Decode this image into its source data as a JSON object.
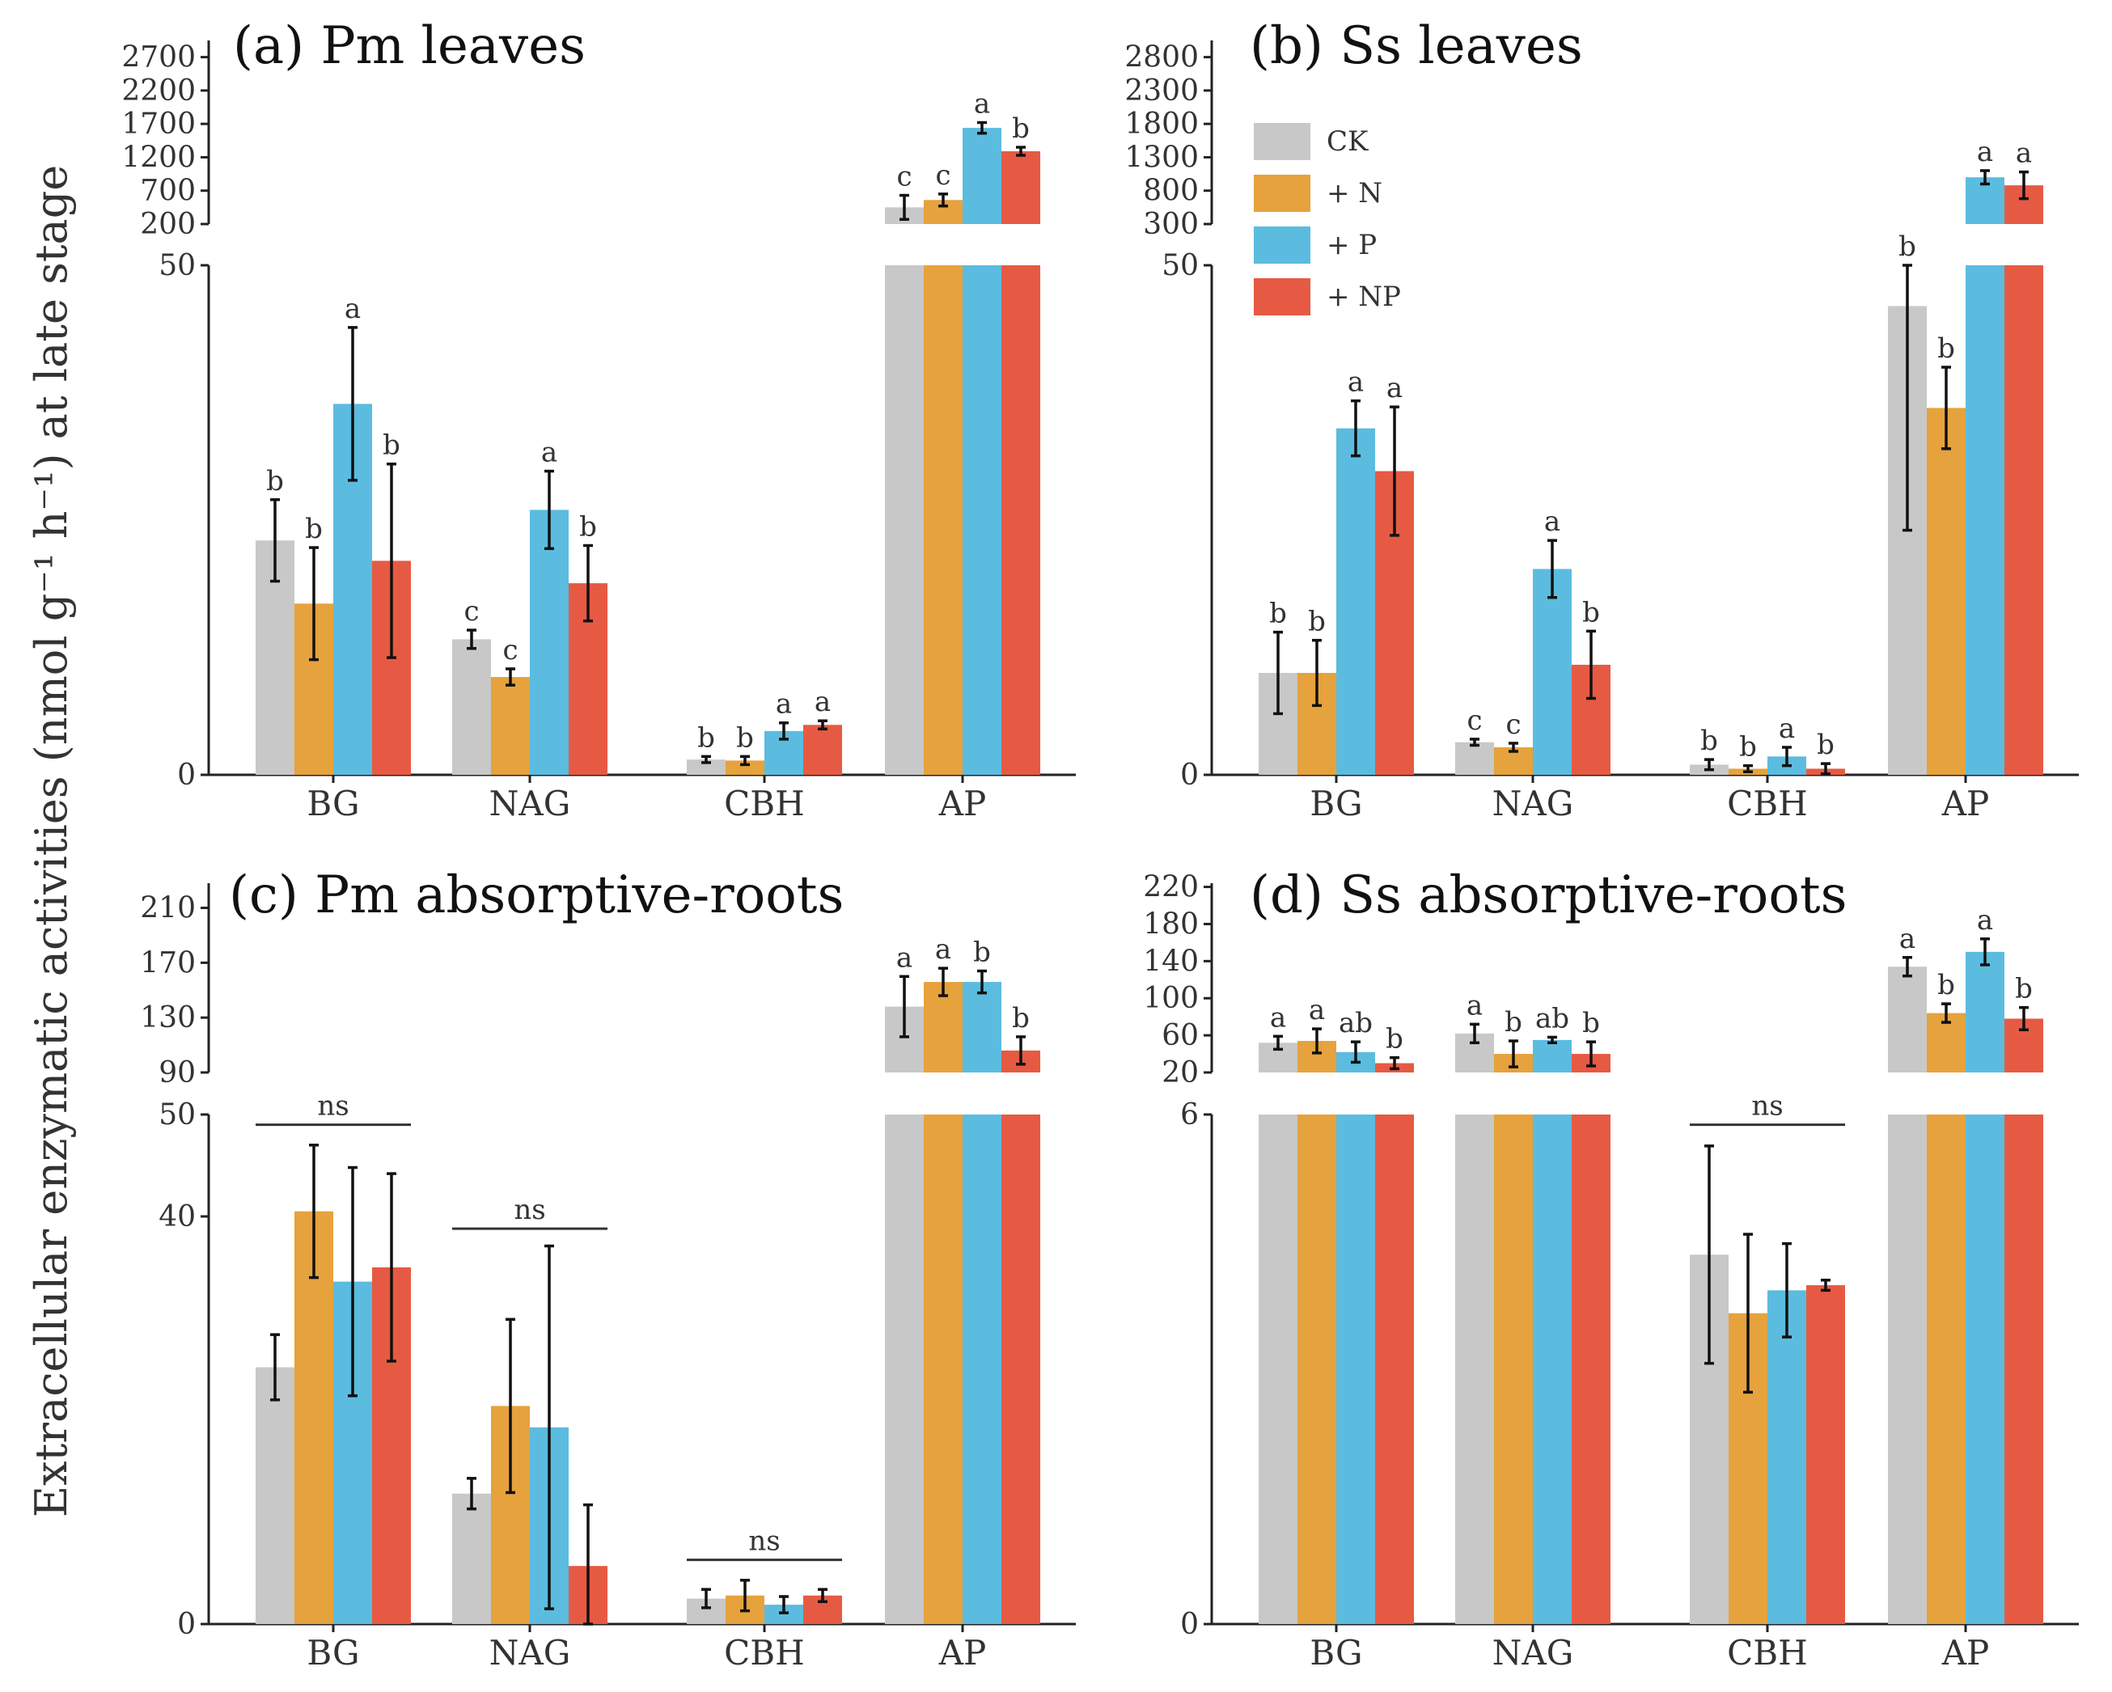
{
  "figure": {
    "y_axis_label": "Extracellular enzymatic activities (nmol g⁻¹ h⁻¹) at late stage",
    "categories": [
      "BG",
      "NAG",
      "CBH",
      "AP"
    ]
  },
  "legend": [
    {
      "label": "CK",
      "color": "#c8c8c8"
    },
    {
      "label": "+ N",
      "color": "#e6a23c"
    },
    {
      "label": "+ P",
      "color": "#5bbcdf"
    },
    {
      "label": "+ NP",
      "color": "#e65a43"
    }
  ],
  "chart_data": [
    {
      "type": "bar",
      "panel": "a",
      "title": "(a) Pm leaves",
      "categories": [
        "BG",
        "NAG",
        "CBH",
        "AP"
      ],
      "lower_axis": {
        "ylim": [
          0,
          50
        ],
        "ticks": [
          "0",
          "50"
        ]
      },
      "upper_axis": {
        "ylim": [
          200,
          2950
        ],
        "ticks": [
          "200",
          "700",
          "1200",
          "1700",
          "2200",
          "2700"
        ]
      },
      "series": [
        {
          "name": "CK",
          "values": [
            23.0,
            13.3,
            1.5,
            450
          ],
          "errors": [
            4.0,
            0.9,
            0.3,
            180
          ],
          "letters": [
            "b",
            "c",
            "b",
            "c"
          ]
        },
        {
          "name": "+ N",
          "values": [
            16.8,
            9.6,
            1.4,
            560
          ],
          "errors": [
            5.5,
            0.8,
            0.4,
            90
          ],
          "letters": [
            "b",
            "c",
            "b",
            "c"
          ]
        },
        {
          "name": "+ P",
          "values": [
            36.4,
            26.0,
            4.3,
            1640
          ],
          "errors": [
            7.5,
            3.8,
            0.8,
            80
          ],
          "letters": [
            "a",
            "a",
            "a",
            "a"
          ]
        },
        {
          "name": "+ NP",
          "values": [
            21.0,
            18.8,
            4.9,
            1290
          ],
          "errors": [
            9.5,
            3.7,
            0.4,
            60
          ],
          "letters": [
            "b",
            "b",
            "a",
            "b"
          ]
        }
      ],
      "ns": []
    },
    {
      "type": "bar",
      "panel": "b",
      "title": "(b) Ss leaves",
      "categories": [
        "BG",
        "NAG",
        "CBH",
        "AP"
      ],
      "lower_axis": {
        "ylim": [
          0,
          50
        ],
        "ticks": [
          "0",
          "50"
        ]
      },
      "upper_axis": {
        "ylim": [
          300,
          3050
        ],
        "ticks": [
          "300",
          "800",
          "1300",
          "1800",
          "2300",
          "2800"
        ]
      },
      "series": [
        {
          "name": "CK",
          "values": [
            10.0,
            3.2,
            1.0,
            46.0
          ],
          "errors": [
            4.0,
            0.3,
            0.5,
            22
          ],
          "letters": [
            "b",
            "c",
            "b",
            "b"
          ]
        },
        {
          "name": "+ N",
          "values": [
            10.0,
            2.7,
            0.6,
            36.0
          ],
          "errors": [
            3.2,
            0.4,
            0.3,
            4.0
          ],
          "letters": [
            "b",
            "c",
            "b",
            "b"
          ]
        },
        {
          "name": "+ P",
          "values": [
            34.0,
            20.2,
            1.8,
            1000
          ],
          "errors": [
            2.7,
            2.8,
            0.9,
            100
          ],
          "letters": [
            "a",
            "a",
            "a",
            "a"
          ]
        },
        {
          "name": "+ NP",
          "values": [
            29.8,
            10.8,
            0.6,
            880
          ],
          "errors": [
            6.3,
            3.3,
            0.5,
            200
          ],
          "letters": [
            "a",
            "b",
            "b",
            "a"
          ]
        }
      ],
      "ns": []
    },
    {
      "type": "bar",
      "panel": "c",
      "title": "(c) Pm absorptive-roots",
      "categories": [
        "BG",
        "NAG",
        "CBH",
        "AP"
      ],
      "lower_axis": {
        "ylim": [
          0,
          50
        ],
        "ticks": [
          "0",
          "40",
          "50"
        ]
      },
      "upper_axis": {
        "ylim": [
          90,
          228
        ],
        "ticks": [
          "90",
          "130",
          "170",
          "210"
        ]
      },
      "series": [
        {
          "name": "CK",
          "values": [
            25.2,
            12.8,
            2.5,
            138
          ],
          "errors": [
            3.2,
            1.5,
            0.9,
            22
          ],
          "letters": [
            "",
            "",
            "",
            "a"
          ]
        },
        {
          "name": "+ N",
          "values": [
            40.5,
            21.4,
            2.8,
            156
          ],
          "errors": [
            6.5,
            8.5,
            1.5,
            10
          ],
          "letters": [
            "",
            "",
            "",
            "a"
          ]
        },
        {
          "name": "+ P",
          "values": [
            33.6,
            19.3,
            1.9,
            156
          ],
          "errors": [
            11.2,
            17.8,
            0.8,
            8
          ],
          "letters": [
            "",
            "",
            "",
            "b"
          ]
        },
        {
          "name": "+ NP",
          "values": [
            35.0,
            5.7,
            2.8,
            106
          ],
          "errors": [
            9.2,
            6.0,
            0.6,
            10
          ],
          "letters": [
            "",
            "",
            "",
            "b"
          ]
        }
      ],
      "ns": [
        {
          "label": "ns",
          "category": "BG",
          "value": 49.0
        },
        {
          "label": "ns",
          "category": "NAG",
          "value": 38.8
        },
        {
          "label": "ns",
          "category": "CBH",
          "value": 6.3
        }
      ]
    },
    {
      "type": "bar",
      "panel": "d",
      "title": "(d) Ss absorptive-roots",
      "categories": [
        "BG",
        "NAG",
        "CBH",
        "AP"
      ],
      "lower_axis": {
        "ylim": [
          0,
          6
        ],
        "ticks": [
          "0",
          "6"
        ]
      },
      "upper_axis": {
        "ylim": [
          20,
          224
        ],
        "ticks": [
          "20",
          "60",
          "100",
          "140",
          "180",
          "220"
        ]
      },
      "series": [
        {
          "name": "CK",
          "values": [
            52,
            62,
            4.35,
            134
          ],
          "errors": [
            7,
            10,
            1.28,
            10
          ],
          "letters": [
            "a",
            "a",
            "",
            "a"
          ]
        },
        {
          "name": "+ N",
          "values": [
            54,
            40,
            3.66,
            84
          ],
          "errors": [
            13,
            14,
            0.93,
            10
          ],
          "letters": [
            "a",
            "b",
            "",
            "b"
          ]
        },
        {
          "name": "+ P",
          "values": [
            42,
            55,
            3.93,
            150
          ],
          "errors": [
            11,
            3,
            0.55,
            14
          ],
          "letters": [
            "ab",
            "ab",
            "",
            "a"
          ]
        },
        {
          "name": "+ NP",
          "values": [
            30,
            40,
            3.99,
            78
          ],
          "errors": [
            6,
            13,
            0.06,
            12
          ],
          "letters": [
            "b",
            "b",
            "",
            "b"
          ]
        }
      ],
      "ns": [
        {
          "label": "ns",
          "category": "CBH",
          "value": 5.88
        }
      ]
    }
  ]
}
